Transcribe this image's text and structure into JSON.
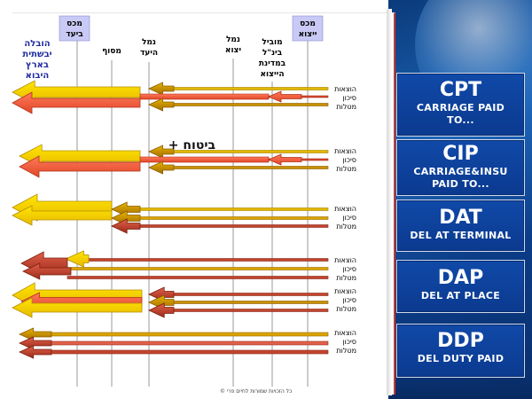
{
  "columns": {
    "customs_dest": "מכס ביעד",
    "customs_export": "מכס ייצוא",
    "inland_transport": [
      "הובלה",
      "יבשתית",
      "בארץ",
      "היבוא"
    ],
    "terminal": "מסוף",
    "port_dest": [
      "נמל",
      "היעד"
    ],
    "port_export": [
      "נמל",
      "יצוא"
    ],
    "carrier": [
      "מוביל",
      "בינ\"ל",
      "במדינת",
      "הייצוא"
    ]
  },
  "row_labels": [
    "הוצאות",
    "סיכון",
    "מטלות"
  ],
  "insurance_note": "+ ביטוח",
  "terms": [
    {
      "abbr": "CPT",
      "full": [
        "CARRIAGE PAID",
        "TO..."
      ]
    },
    {
      "abbr": "CIP",
      "full": [
        "CARRIAGE&INSU",
        "PAID TO..."
      ]
    },
    {
      "abbr": "DAT",
      "full": [
        "DEL AT TERMINAL"
      ]
    },
    {
      "abbr": "DAP",
      "full": [
        "DEL  AT PLACE"
      ]
    },
    {
      "abbr": "DDP",
      "full": [
        "DEL DUTY PAID"
      ]
    }
  ],
  "copyright": "© כל הזכויות שמורות לחיים פרי",
  "colors": {
    "cost": "#f5d800",
    "cost_edge": "#c9a400",
    "risk": "#ff6a4d",
    "risk_edge": "#c4391f",
    "task": "#d9a400",
    "task_edge": "#9c6c00",
    "task_dark": "#c2452e",
    "header_box": "#c9c9f5",
    "term_bg": "#0b3f96"
  }
}
